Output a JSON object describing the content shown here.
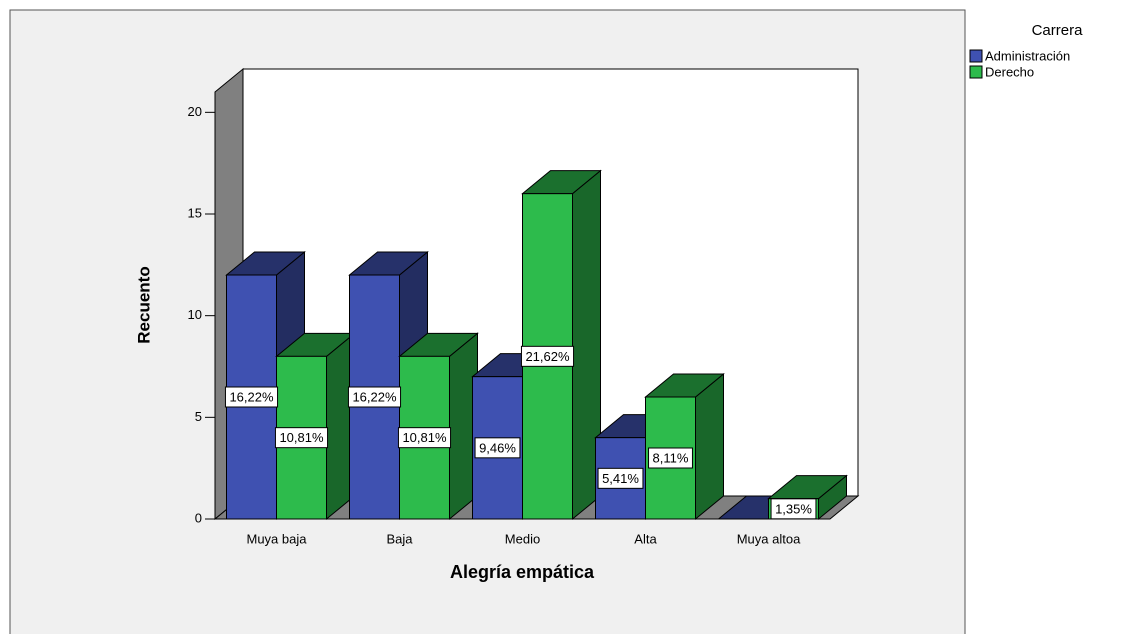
{
  "chart_data": {
    "type": "bar3d",
    "x_label": "Alegría empática",
    "y_label": "Recuento",
    "legend_title": "Carrera",
    "categories": [
      "Muya baja",
      "Baja",
      "Medio",
      "Alta",
      "Muya altoa"
    ],
    "series": [
      {
        "name": "Administración",
        "color": "#3f51b1",
        "values": [
          12,
          12,
          7,
          4,
          0
        ],
        "value_labels": [
          "16,22%",
          "16,22%",
          "9,46%",
          "5,41%",
          null
        ]
      },
      {
        "name": "Derecho",
        "color": "#2dbb4c",
        "values": [
          8,
          8,
          16,
          6,
          1
        ],
        "value_labels": [
          "10,81%",
          "10,81%",
          "21,62%",
          "8,11%",
          "1,35%"
        ]
      }
    ],
    "ylim": [
      0,
      21
    ],
    "yticks": [
      0,
      5,
      10,
      15,
      20
    ],
    "legend": "top-right"
  }
}
